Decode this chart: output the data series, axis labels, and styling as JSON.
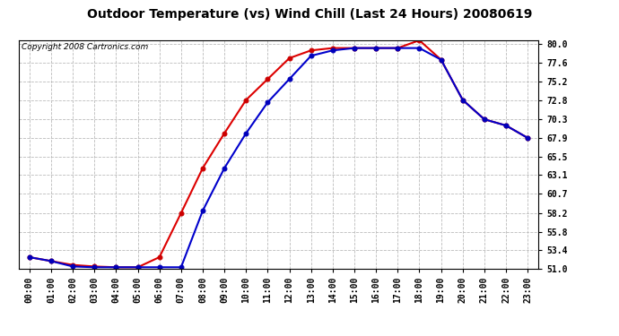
{
  "title": "Outdoor Temperature (vs) Wind Chill (Last 24 Hours) 20080619",
  "copyright": "Copyright 2008 Cartronics.com",
  "hours": [
    "00:00",
    "01:00",
    "02:00",
    "03:00",
    "04:00",
    "05:00",
    "06:00",
    "07:00",
    "08:00",
    "09:00",
    "10:00",
    "11:00",
    "12:00",
    "13:00",
    "14:00",
    "15:00",
    "16:00",
    "17:00",
    "18:00",
    "19:00",
    "20:00",
    "21:00",
    "22:00",
    "23:00"
  ],
  "temp": [
    52.5,
    52.0,
    51.5,
    51.3,
    51.2,
    51.2,
    52.5,
    58.2,
    64.0,
    68.5,
    72.8,
    75.5,
    78.2,
    79.2,
    79.5,
    79.5,
    79.5,
    79.5,
    80.5,
    78.0,
    72.8,
    70.3,
    69.5,
    67.9
  ],
  "windchill": [
    52.5,
    52.0,
    51.3,
    51.2,
    51.2,
    51.2,
    51.2,
    51.2,
    58.5,
    64.0,
    68.5,
    72.5,
    75.5,
    78.5,
    79.2,
    79.5,
    79.5,
    79.5,
    79.5,
    78.0,
    72.8,
    70.3,
    69.5,
    67.9
  ],
  "temp_color": "#dd0000",
  "windchill_color": "#0000cc",
  "marker_color_temp": "#cc0000",
  "marker_color_wc": "#0000bb",
  "ylim_min": 51.0,
  "ylim_max": 80.5,
  "yticks": [
    51.0,
    53.4,
    55.8,
    58.2,
    60.7,
    63.1,
    65.5,
    67.9,
    70.3,
    72.8,
    75.2,
    77.6,
    80.0
  ],
  "bg_color": "#ffffff",
  "plot_bg": "#ffffff",
  "grid_color": "#bbbbbb",
  "title_fontsize": 10,
  "copyright_fontsize": 6.5,
  "tick_fontsize": 7
}
